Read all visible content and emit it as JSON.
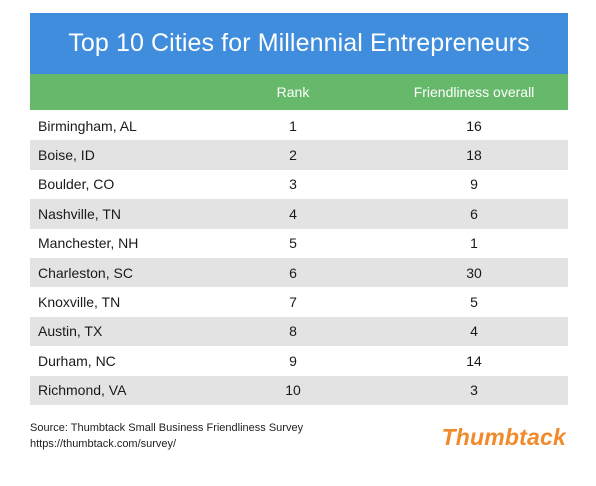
{
  "chart_data": {
    "type": "table",
    "title": "Top 10 Cities for Millennial Entrepreneurs",
    "columns": [
      "",
      "Rank",
      "Friendliness overall"
    ],
    "rows": [
      {
        "city": "Birmingham, AL",
        "rank": "1",
        "friendliness": "16"
      },
      {
        "city": "Boise, ID",
        "rank": "2",
        "friendliness": "18"
      },
      {
        "city": "Boulder, CO",
        "rank": "3",
        "friendliness": "9"
      },
      {
        "city": "Nashville, TN",
        "rank": "4",
        "friendliness": "6"
      },
      {
        "city": "Manchester, NH",
        "rank": "5",
        "friendliness": "1"
      },
      {
        "city": "Charleston, SC",
        "rank": "6",
        "friendliness": "30"
      },
      {
        "city": "Knoxville, TN",
        "rank": "7",
        "friendliness": "5"
      },
      {
        "city": "Austin, TX",
        "rank": "8",
        "friendliness": "4"
      },
      {
        "city": "Durham, NC",
        "rank": "9",
        "friendliness": "14"
      },
      {
        "city": "Richmond, VA",
        "rank": "10",
        "friendliness": "3"
      }
    ]
  },
  "footer": {
    "source": "Source: Thumbtack Small Business Friendliness Survey",
    "url": "https://thumbtack.com/survey/",
    "logo": "Thumbtack"
  },
  "colors": {
    "title_bg": "#3f8ddc",
    "header_bg": "#66b96b",
    "alt_row_bg": "#e3e3e3",
    "logo": "#f08a2a"
  }
}
